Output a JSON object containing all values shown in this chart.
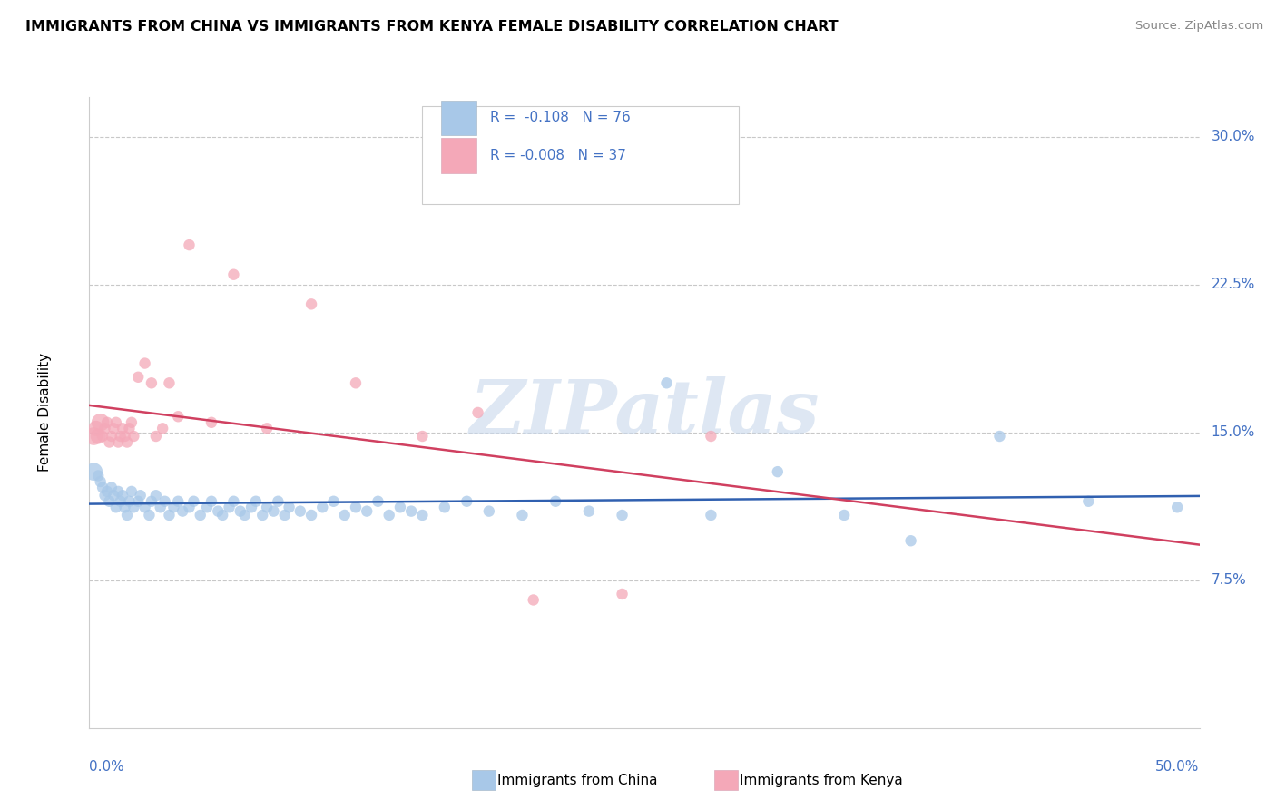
{
  "title": "IMMIGRANTS FROM CHINA VS IMMIGRANTS FROM KENYA FEMALE DISABILITY CORRELATION CHART",
  "source": "Source: ZipAtlas.com",
  "ylabel": "Female Disability",
  "xmin": 0.0,
  "xmax": 0.5,
  "ymin": 0.0,
  "ymax": 0.32,
  "yticks": [
    0.075,
    0.15,
    0.225,
    0.3
  ],
  "ytick_labels": [
    "7.5%",
    "15.0%",
    "22.5%",
    "30.0%"
  ],
  "legend_china_R": "R =  -0.108",
  "legend_china_N": "N = 76",
  "legend_kenya_R": "R = -0.008",
  "legend_kenya_N": "N = 37",
  "china_color": "#a8c8e8",
  "kenya_color": "#f4a8b8",
  "china_line_color": "#3060b0",
  "kenya_line_color": "#d04060",
  "background_color": "#ffffff",
  "watermark": "ZIPatlas",
  "china_x": [
    0.002,
    0.004,
    0.005,
    0.006,
    0.007,
    0.008,
    0.009,
    0.01,
    0.011,
    0.012,
    0.013,
    0.014,
    0.015,
    0.016,
    0.017,
    0.018,
    0.019,
    0.02,
    0.022,
    0.023,
    0.025,
    0.027,
    0.028,
    0.03,
    0.032,
    0.034,
    0.036,
    0.038,
    0.04,
    0.042,
    0.045,
    0.047,
    0.05,
    0.053,
    0.055,
    0.058,
    0.06,
    0.063,
    0.065,
    0.068,
    0.07,
    0.073,
    0.075,
    0.078,
    0.08,
    0.083,
    0.085,
    0.088,
    0.09,
    0.095,
    0.1,
    0.105,
    0.11,
    0.115,
    0.12,
    0.125,
    0.13,
    0.135,
    0.14,
    0.145,
    0.15,
    0.16,
    0.17,
    0.18,
    0.195,
    0.21,
    0.225,
    0.24,
    0.26,
    0.28,
    0.31,
    0.34,
    0.37,
    0.41,
    0.45,
    0.49
  ],
  "china_y": [
    0.13,
    0.128,
    0.125,
    0.122,
    0.118,
    0.12,
    0.115,
    0.122,
    0.118,
    0.112,
    0.12,
    0.115,
    0.118,
    0.112,
    0.108,
    0.115,
    0.12,
    0.112,
    0.115,
    0.118,
    0.112,
    0.108,
    0.115,
    0.118,
    0.112,
    0.115,
    0.108,
    0.112,
    0.115,
    0.11,
    0.112,
    0.115,
    0.108,
    0.112,
    0.115,
    0.11,
    0.108,
    0.112,
    0.115,
    0.11,
    0.108,
    0.112,
    0.115,
    0.108,
    0.112,
    0.11,
    0.115,
    0.108,
    0.112,
    0.11,
    0.108,
    0.112,
    0.115,
    0.108,
    0.112,
    0.11,
    0.115,
    0.108,
    0.112,
    0.11,
    0.108,
    0.112,
    0.115,
    0.11,
    0.108,
    0.115,
    0.11,
    0.108,
    0.175,
    0.108,
    0.13,
    0.108,
    0.095,
    0.148,
    0.115,
    0.112
  ],
  "china_sizes": [
    200,
    80,
    80,
    80,
    80,
    80,
    80,
    80,
    80,
    80,
    80,
    80,
    80,
    80,
    80,
    80,
    80,
    80,
    80,
    80,
    80,
    80,
    80,
    80,
    80,
    80,
    80,
    80,
    80,
    80,
    80,
    80,
    80,
    80,
    80,
    80,
    80,
    80,
    80,
    80,
    80,
    80,
    80,
    80,
    80,
    80,
    80,
    80,
    80,
    80,
    80,
    80,
    80,
    80,
    80,
    80,
    80,
    80,
    80,
    80,
    80,
    80,
    80,
    80,
    80,
    80,
    80,
    80,
    80,
    80,
    80,
    80,
    80,
    80,
    80,
    80
  ],
  "kenya_x": [
    0.002,
    0.003,
    0.004,
    0.005,
    0.006,
    0.007,
    0.008,
    0.009,
    0.01,
    0.011,
    0.012,
    0.013,
    0.014,
    0.015,
    0.016,
    0.017,
    0.018,
    0.019,
    0.02,
    0.022,
    0.025,
    0.028,
    0.03,
    0.033,
    0.036,
    0.04,
    0.045,
    0.055,
    0.065,
    0.08,
    0.1,
    0.12,
    0.15,
    0.175,
    0.2,
    0.24,
    0.28
  ],
  "kenya_y": [
    0.148,
    0.152,
    0.148,
    0.155,
    0.148,
    0.152,
    0.155,
    0.145,
    0.148,
    0.152,
    0.155,
    0.145,
    0.148,
    0.152,
    0.148,
    0.145,
    0.152,
    0.155,
    0.148,
    0.178,
    0.185,
    0.175,
    0.148,
    0.152,
    0.175,
    0.158,
    0.245,
    0.155,
    0.23,
    0.152,
    0.215,
    0.175,
    0.148,
    0.16,
    0.065,
    0.068,
    0.148
  ],
  "kenya_sizes": [
    200,
    150,
    150,
    200,
    80,
    80,
    80,
    80,
    80,
    80,
    80,
    80,
    80,
    80,
    80,
    80,
    80,
    80,
    80,
    80,
    80,
    80,
    80,
    80,
    80,
    80,
    80,
    80,
    80,
    80,
    80,
    80,
    80,
    80,
    80,
    80,
    80
  ]
}
